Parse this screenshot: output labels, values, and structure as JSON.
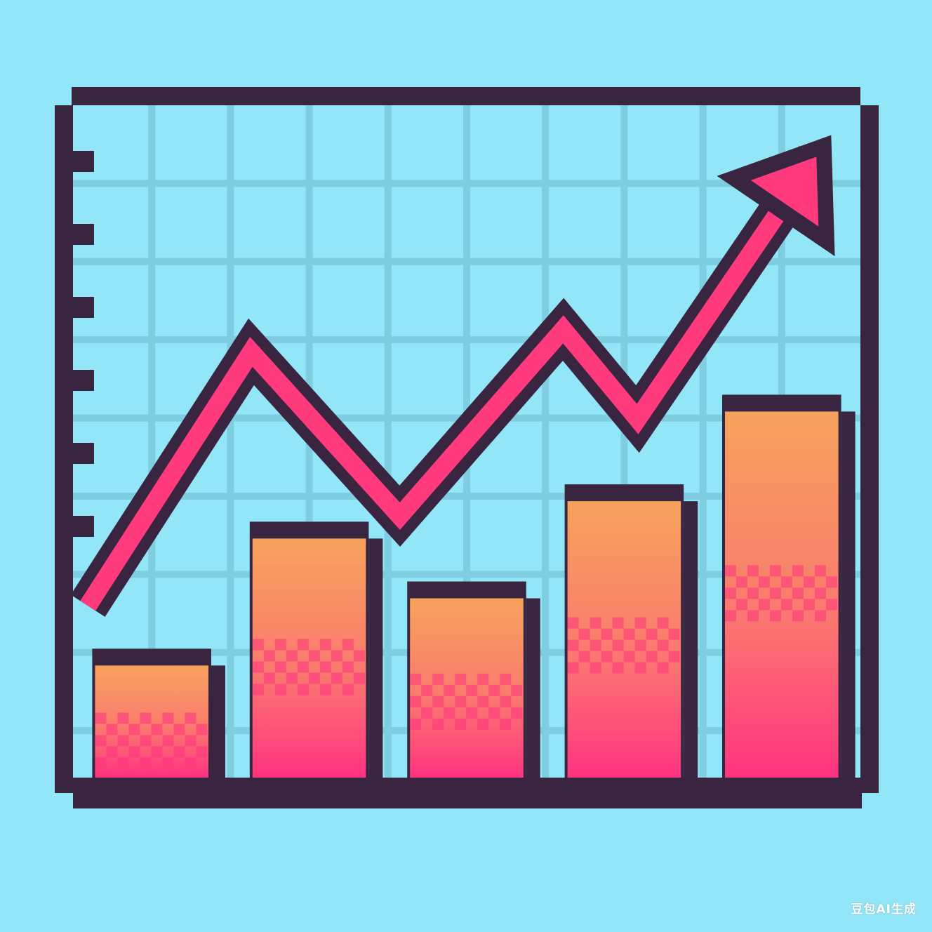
{
  "chart_data": {
    "type": "bar",
    "categories": [
      "",
      "",
      "",
      "",
      ""
    ],
    "values": [
      1.5,
      3.2,
      2.4,
      3.7,
      4.9
    ],
    "trend_line": {
      "points": [
        [
          0.1,
          2.3
        ],
        [
          1.2,
          5.7
        ],
        [
          2.2,
          3.5
        ],
        [
          3.3,
          6.0
        ],
        [
          3.8,
          4.8
        ],
        [
          5.0,
          8.3
        ]
      ],
      "arrow": true
    },
    "ylim": [
      0,
      9
    ],
    "xlim": [
      0,
      5.3
    ],
    "grid": true,
    "title": "",
    "xlabel": "",
    "ylabel": "",
    "colors": {
      "background": "#93e6f7",
      "grid": "#7fcde0",
      "frame": "#3a2541",
      "bar_top": "#f7a35c",
      "bar_bottom": "#ff3380",
      "line": "#ff3a7d"
    }
  },
  "watermark": "豆包AI生成"
}
